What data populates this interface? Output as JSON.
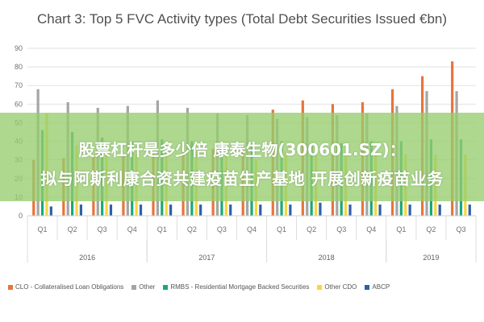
{
  "chart_data": {
    "type": "bar",
    "title": "Chart 3: Top 5 FVC Activity types (Total Debt Securities Issued €bn)",
    "categories": [
      "Q1",
      "Q2",
      "Q3",
      "Q4",
      "Q1",
      "Q2",
      "Q3",
      "Q4",
      "Q1",
      "Q2",
      "Q3",
      "Q4",
      "Q1",
      "Q2",
      "Q3"
    ],
    "years": [
      {
        "label": "2016",
        "start": 0,
        "count": 4
      },
      {
        "label": "2017",
        "start": 4,
        "count": 4
      },
      {
        "label": "2018",
        "start": 8,
        "count": 4
      },
      {
        "label": "2019",
        "start": 12,
        "count": 3
      }
    ],
    "ylim": [
      0,
      90
    ],
    "yticks": [
      0,
      10,
      20,
      30,
      40,
      50,
      60,
      70,
      80,
      90
    ],
    "grid": true,
    "legend_position": "bottom",
    "series": [
      {
        "name": "CLO - Collateralised Loan Obligations",
        "color": "#e8743b",
        "values": [
          30,
          31,
          32,
          32,
          33,
          34,
          36,
          37,
          57,
          62,
          60,
          61,
          68,
          75,
          83
        ]
      },
      {
        "name": "Other",
        "color": "#a5a5a5",
        "values": [
          68,
          61,
          58,
          59,
          62,
          58,
          55,
          54,
          52,
          53,
          54,
          55,
          59,
          67,
          67
        ]
      },
      {
        "name": "RMBS - Residential Mortgage Backed Securities",
        "color": "#19a979",
        "values": [
          46,
          45,
          42,
          40,
          41,
          40,
          39,
          38,
          40,
          39,
          39,
          40,
          40,
          41,
          41
        ]
      },
      {
        "name": "Other CDO",
        "color": "#f5d742",
        "values": [
          55,
          38,
          33,
          33,
          38,
          34,
          33,
          30,
          34,
          33,
          32,
          33,
          33,
          33,
          33
        ]
      },
      {
        "name": "ABCP",
        "color": "#2e5fa8",
        "values": [
          5,
          6,
          6,
          6,
          6,
          6,
          6,
          6,
          6,
          7,
          6,
          6,
          6,
          6,
          6
        ]
      }
    ]
  },
  "overlay": {
    "line1": "股票杠杆是多少倍 康泰生物(300601.SZ)：",
    "line2": "拟与阿斯利康合资共建疫苗生产基地 开展创新疫苗业务"
  }
}
